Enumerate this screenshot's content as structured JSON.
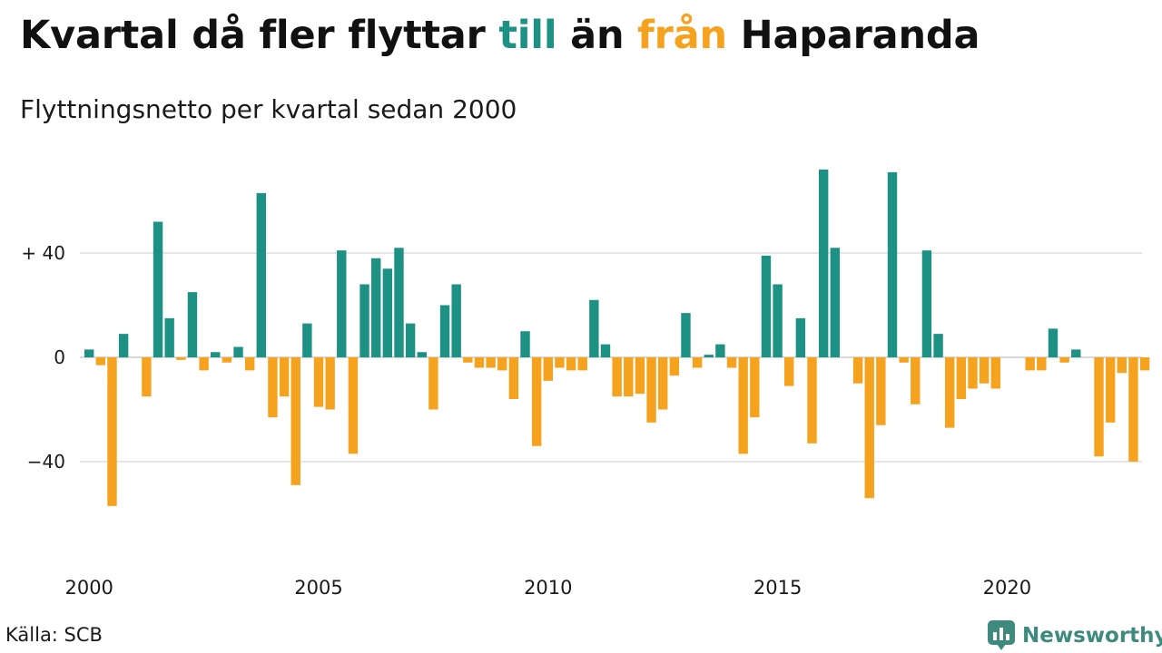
{
  "header": {
    "title_part1": "Kvartal då fler flyttar ",
    "title_till": "till",
    "title_part2": " än ",
    "title_fran": "från",
    "title_part3": " Haparanda",
    "subtitle": "Flyttningsnetto per kvartal sedan 2000"
  },
  "footer": {
    "source": "Källa: SCB",
    "brand": "Newsworthy"
  },
  "colors": {
    "positive": "#1e9185",
    "negative": "#f5a21f",
    "grid": "#dddddd",
    "brand": "#3e8a7e"
  },
  "chart_data": {
    "type": "bar",
    "title": "Kvartal då fler flyttar till än från Haparanda",
    "subtitle": "Flyttningsnetto per kvartal sedan 2000",
    "ylim": [
      -60,
      75
    ],
    "y_ticks": [
      {
        "value": 40,
        "label": "+ 40"
      },
      {
        "value": 0,
        "label": "0"
      },
      {
        "value": -40,
        "label": "−40"
      }
    ],
    "x_ticks": [
      "2000",
      "2005",
      "2010",
      "2015",
      "2020"
    ],
    "start_year": 2000,
    "grid": true,
    "categories": [
      "2000 Q1",
      "2000 Q2",
      "2000 Q3",
      "2000 Q4",
      "2001 Q1",
      "2001 Q2",
      "2001 Q3",
      "2001 Q4",
      "2002 Q1",
      "2002 Q2",
      "2002 Q3",
      "2002 Q4",
      "2003 Q1",
      "2003 Q2",
      "2003 Q3",
      "2003 Q4",
      "2004 Q1",
      "2004 Q2",
      "2004 Q3",
      "2004 Q4",
      "2005 Q1",
      "2005 Q2",
      "2005 Q3",
      "2005 Q4",
      "2006 Q1",
      "2006 Q2",
      "2006 Q3",
      "2006 Q4",
      "2007 Q1",
      "2007 Q2",
      "2007 Q3",
      "2007 Q4",
      "2008 Q1",
      "2008 Q2",
      "2008 Q3",
      "2008 Q4",
      "2009 Q1",
      "2009 Q2",
      "2009 Q3",
      "2009 Q4",
      "2010 Q1",
      "2010 Q2",
      "2010 Q3",
      "2010 Q4",
      "2011 Q1",
      "2011 Q2",
      "2011 Q3",
      "2011 Q4",
      "2012 Q1",
      "2012 Q2",
      "2012 Q3",
      "2012 Q4",
      "2013 Q1",
      "2013 Q2",
      "2013 Q3",
      "2013 Q4",
      "2014 Q1",
      "2014 Q2",
      "2014 Q3",
      "2014 Q4",
      "2015 Q1",
      "2015 Q2",
      "2015 Q3",
      "2015 Q4",
      "2016 Q1",
      "2016 Q2",
      "2016 Q3",
      "2016 Q4",
      "2017 Q1",
      "2017 Q2",
      "2017 Q3",
      "2017 Q4",
      "2018 Q1",
      "2018 Q2",
      "2018 Q3",
      "2018 Q4",
      "2019 Q1",
      "2019 Q2",
      "2019 Q3",
      "2019 Q4",
      "2020 Q1",
      "2020 Q2",
      "2020 Q3",
      "2020 Q4",
      "2021 Q1",
      "2021 Q2",
      "2021 Q3",
      "2021 Q4",
      "2022 Q1",
      "2022 Q2",
      "2022 Q3",
      "2022 Q4",
      "2023 Q1",
      "2023 Q2"
    ],
    "values": [
      3,
      -3,
      -57,
      9,
      0,
      -15,
      52,
      15,
      -1,
      25,
      -5,
      2,
      -2,
      4,
      -5,
      63,
      -23,
      -15,
      -49,
      13,
      -19,
      -20,
      41,
      -37,
      28,
      38,
      34,
      42,
      13,
      2,
      -20,
      20,
      28,
      -2,
      -4,
      -4,
      -5,
      -16,
      10,
      -34,
      -9,
      -4,
      -5,
      -5,
      22,
      5,
      -15,
      -15,
      -14,
      -25,
      -20,
      -7,
      17,
      -4,
      1,
      5,
      -4,
      -37,
      -23,
      39,
      28,
      -11,
      15,
      -33,
      72,
      42,
      0,
      -10,
      -54,
      -26,
      71,
      -2,
      -18,
      41,
      9,
      -27,
      -16,
      -12,
      -10,
      -12,
      0,
      0,
      -5,
      -5,
      11,
      -2,
      3,
      0,
      -38,
      -25,
      -6,
      -40,
      -5,
      0
    ]
  }
}
